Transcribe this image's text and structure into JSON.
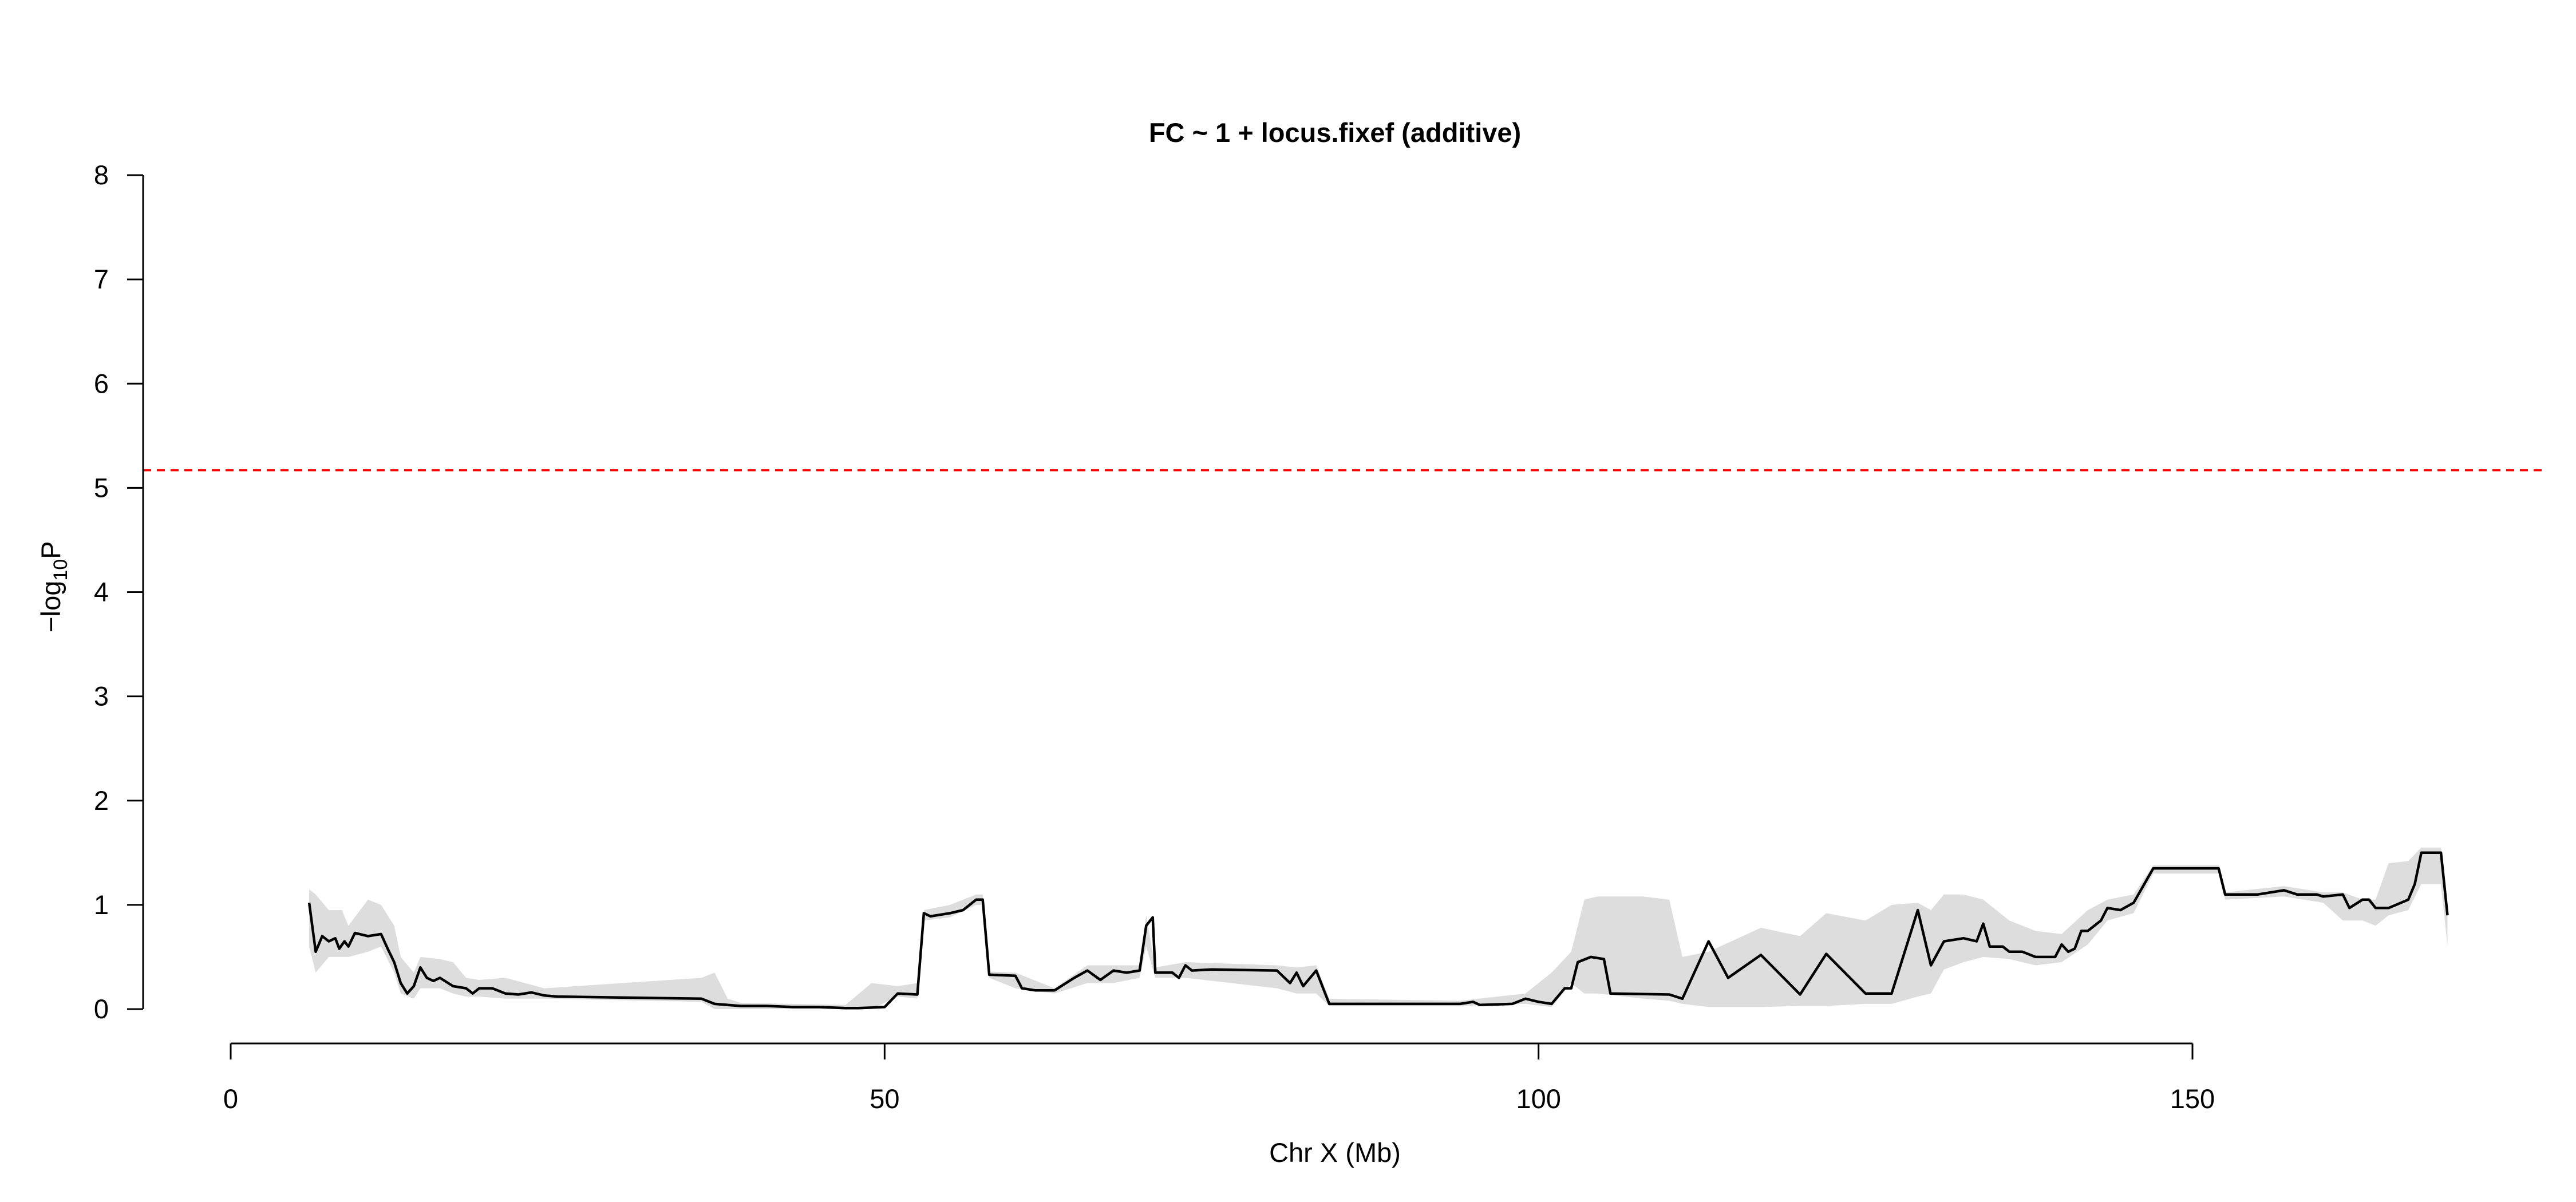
{
  "chart_data": {
    "type": "line",
    "title": "FC ~ 1 + locus.fixef (additive)",
    "xlabel": "Chr X (Mb)",
    "ylabel": {
      "base": "−log",
      "subscript": "10",
      "suffix": "P"
    },
    "xlim": [
      0,
      180
    ],
    "ylim": [
      0,
      8
    ],
    "x_ticks": [
      "0",
      "50",
      "100",
      "150"
    ],
    "y_ticks": [
      "0",
      "1",
      "2",
      "3",
      "4",
      "5",
      "6",
      "7",
      "8"
    ],
    "threshold": {
      "value": 5.17,
      "color": "#ff0000",
      "style": "dashed"
    },
    "grid": false,
    "colors": {
      "line": "#000000",
      "band": "#dddddd"
    },
    "series": [
      {
        "values": [
          [
            6,
            1.02
          ],
          [
            6.5,
            0.55
          ],
          [
            7,
            0.7
          ],
          [
            7.5,
            0.65
          ],
          [
            8,
            0.68
          ],
          [
            8.3,
            0.58
          ],
          [
            8.7,
            0.65
          ],
          [
            9,
            0.6
          ],
          [
            9.5,
            0.73
          ],
          [
            10.5,
            0.7
          ],
          [
            11.5,
            0.72
          ],
          [
            12,
            0.58
          ],
          [
            12.5,
            0.45
          ],
          [
            13,
            0.25
          ],
          [
            13.5,
            0.15
          ],
          [
            14,
            0.22
          ],
          [
            14.5,
            0.4
          ],
          [
            15,
            0.3
          ],
          [
            15.5,
            0.27
          ],
          [
            16,
            0.3
          ],
          [
            17,
            0.22
          ],
          [
            18,
            0.2
          ],
          [
            18.5,
            0.15
          ],
          [
            19,
            0.2
          ],
          [
            20,
            0.2
          ],
          [
            21,
            0.15
          ],
          [
            22,
            0.14
          ],
          [
            23,
            0.16
          ],
          [
            24,
            0.13
          ],
          [
            25,
            0.12
          ],
          [
            36,
            0.1
          ],
          [
            37,
            0.05
          ],
          [
            38,
            0.04
          ],
          [
            39,
            0.03
          ],
          [
            41,
            0.03
          ],
          [
            43,
            0.02
          ],
          [
            45,
            0.02
          ],
          [
            47,
            0.01
          ],
          [
            48,
            0.01
          ],
          [
            50,
            0.02
          ],
          [
            51,
            0.15
          ],
          [
            52.5,
            0.14
          ],
          [
            53,
            0.92
          ],
          [
            53.5,
            0.89
          ],
          [
            55,
            0.92
          ],
          [
            56,
            0.95
          ],
          [
            57,
            1.05
          ],
          [
            57.5,
            1.05
          ],
          [
            58,
            0.33
          ],
          [
            60,
            0.32
          ],
          [
            60.5,
            0.2
          ],
          [
            61.5,
            0.18
          ],
          [
            63,
            0.18
          ],
          [
            64.5,
            0.3
          ],
          [
            65.5,
            0.37
          ],
          [
            66.5,
            0.28
          ],
          [
            67.5,
            0.37
          ],
          [
            68.5,
            0.35
          ],
          [
            69.5,
            0.37
          ],
          [
            70,
            0.8
          ],
          [
            70.5,
            0.88
          ],
          [
            70.7,
            0.35
          ],
          [
            71.5,
            0.35
          ],
          [
            72,
            0.35
          ],
          [
            72.5,
            0.3
          ],
          [
            73,
            0.42
          ],
          [
            73.5,
            0.37
          ],
          [
            75,
            0.38
          ],
          [
            80,
            0.37
          ],
          [
            81,
            0.25
          ],
          [
            81.5,
            0.35
          ],
          [
            82,
            0.22
          ],
          [
            83,
            0.37
          ],
          [
            84,
            0.05
          ],
          [
            85,
            0.05
          ],
          [
            94,
            0.05
          ],
          [
            95,
            0.07
          ],
          [
            95.5,
            0.04
          ],
          [
            98,
            0.05
          ],
          [
            99,
            0.1
          ],
          [
            100,
            0.07
          ],
          [
            101,
            0.05
          ],
          [
            102,
            0.2
          ],
          [
            102.5,
            0.2
          ],
          [
            103,
            0.45
          ],
          [
            104,
            0.5
          ],
          [
            105,
            0.48
          ],
          [
            105.5,
            0.15
          ],
          [
            110,
            0.14
          ],
          [
            111,
            0.1
          ],
          [
            113,
            0.65
          ],
          [
            114.5,
            0.3
          ],
          [
            117,
            0.52
          ],
          [
            120,
            0.14
          ],
          [
            122,
            0.53
          ],
          [
            125,
            0.15
          ],
          [
            127,
            0.15
          ],
          [
            129,
            0.95
          ],
          [
            130,
            0.42
          ],
          [
            131,
            0.65
          ],
          [
            132.5,
            0.68
          ],
          [
            133.5,
            0.65
          ],
          [
            134,
            0.82
          ],
          [
            134.5,
            0.6
          ],
          [
            135.5,
            0.6
          ],
          [
            136,
            0.55
          ],
          [
            137,
            0.55
          ],
          [
            138,
            0.5
          ],
          [
            139.5,
            0.5
          ],
          [
            140,
            0.62
          ],
          [
            140.5,
            0.55
          ],
          [
            141,
            0.58
          ],
          [
            141.5,
            0.75
          ],
          [
            142,
            0.75
          ],
          [
            143,
            0.85
          ],
          [
            143.5,
            0.97
          ],
          [
            144.5,
            0.95
          ],
          [
            145.5,
            1.02
          ],
          [
            147,
            1.35
          ],
          [
            152,
            1.35
          ],
          [
            152.5,
            1.1
          ],
          [
            155,
            1.1
          ],
          [
            157,
            1.14
          ],
          [
            158,
            1.1
          ],
          [
            159.5,
            1.1
          ],
          [
            160,
            1.08
          ],
          [
            161.5,
            1.1
          ],
          [
            162,
            0.97
          ],
          [
            163,
            1.05
          ],
          [
            163.5,
            1.05
          ],
          [
            164,
            0.97
          ],
          [
            165,
            0.97
          ],
          [
            166.5,
            1.05
          ],
          [
            167,
            1.2
          ],
          [
            167.5,
            1.5
          ],
          [
            169,
            1.5
          ],
          [
            169.5,
            0.9
          ]
        ],
        "band": [
          [
            6,
            0.6,
            1.15
          ],
          [
            6.5,
            0.35,
            1.1
          ],
          [
            7.5,
            0.5,
            0.95
          ],
          [
            8.5,
            0.5,
            0.95
          ],
          [
            9,
            0.5,
            0.8
          ],
          [
            10.5,
            0.55,
            1.05
          ],
          [
            11.5,
            0.6,
            1.0
          ],
          [
            12.5,
            0.35,
            0.8
          ],
          [
            13,
            0.15,
            0.5
          ],
          [
            14,
            0.1,
            0.35
          ],
          [
            14.5,
            0.2,
            0.5
          ],
          [
            16,
            0.2,
            0.48
          ],
          [
            17,
            0.15,
            0.45
          ],
          [
            18,
            0.12,
            0.3
          ],
          [
            19,
            0.12,
            0.28
          ],
          [
            21,
            0.1,
            0.3
          ],
          [
            24,
            0.1,
            0.2
          ],
          [
            36,
            0.07,
            0.3
          ],
          [
            37,
            0.0,
            0.35
          ],
          [
            38,
            0.0,
            0.1
          ],
          [
            39,
            0.0,
            0.06
          ],
          [
            47,
            0.0,
            0.04
          ],
          [
            49,
            0.0,
            0.25
          ],
          [
            51,
            0.12,
            0.22
          ],
          [
            52.5,
            0.1,
            0.25
          ],
          [
            53,
            0.85,
            0.95
          ],
          [
            55,
            0.88,
            1.0
          ],
          [
            57,
            1.0,
            1.1
          ],
          [
            57.5,
            1.0,
            1.1
          ],
          [
            58,
            0.3,
            0.36
          ],
          [
            60,
            0.2,
            0.35
          ],
          [
            63,
            0.15,
            0.2
          ],
          [
            65.5,
            0.25,
            0.42
          ],
          [
            67.5,
            0.25,
            0.42
          ],
          [
            69.5,
            0.3,
            0.42
          ],
          [
            70,
            0.6,
            0.9
          ],
          [
            70.7,
            0.3,
            0.4
          ],
          [
            73,
            0.3,
            0.45
          ],
          [
            80,
            0.2,
            0.42
          ],
          [
            81.5,
            0.15,
            0.4
          ],
          [
            83,
            0.15,
            0.42
          ],
          [
            84,
            0.03,
            0.1
          ],
          [
            94,
            0.03,
            0.08
          ],
          [
            99,
            0.05,
            0.15
          ],
          [
            101,
            0.02,
            0.35
          ],
          [
            102.5,
            0.25,
            0.55
          ],
          [
            103.5,
            0.15,
            1.05
          ],
          [
            104.5,
            0.15,
            1.08
          ],
          [
            108,
            0.1,
            1.08
          ],
          [
            110,
            0.08,
            1.05
          ],
          [
            111,
            0.05,
            0.5
          ],
          [
            113,
            0.02,
            0.55
          ],
          [
            117,
            0.02,
            0.78
          ],
          [
            120,
            0.03,
            0.7
          ],
          [
            122,
            0.03,
            0.92
          ],
          [
            125,
            0.05,
            0.85
          ],
          [
            127,
            0.05,
            1.0
          ],
          [
            129,
            0.12,
            1.02
          ],
          [
            130,
            0.15,
            0.95
          ],
          [
            131,
            0.38,
            1.1
          ],
          [
            132.5,
            0.45,
            1.1
          ],
          [
            134,
            0.5,
            1.05
          ],
          [
            136,
            0.48,
            0.85
          ],
          [
            138,
            0.42,
            0.75
          ],
          [
            140,
            0.45,
            0.72
          ],
          [
            142,
            0.62,
            0.95
          ],
          [
            143.5,
            0.85,
            1.05
          ],
          [
            145.5,
            0.92,
            1.1
          ],
          [
            147,
            1.3,
            1.38
          ],
          [
            152,
            1.3,
            1.38
          ],
          [
            152.5,
            1.05,
            1.12
          ],
          [
            157,
            1.08,
            1.18
          ],
          [
            160,
            1.02,
            1.12
          ],
          [
            161.5,
            0.85,
            1.12
          ],
          [
            163,
            0.85,
            1.05
          ],
          [
            164,
            0.8,
            1.05
          ],
          [
            165,
            0.9,
            1.4
          ],
          [
            166.5,
            0.95,
            1.42
          ],
          [
            167.5,
            1.2,
            1.55
          ],
          [
            169,
            1.2,
            1.55
          ],
          [
            169.5,
            0.6,
            1.0
          ]
        ]
      }
    ]
  }
}
